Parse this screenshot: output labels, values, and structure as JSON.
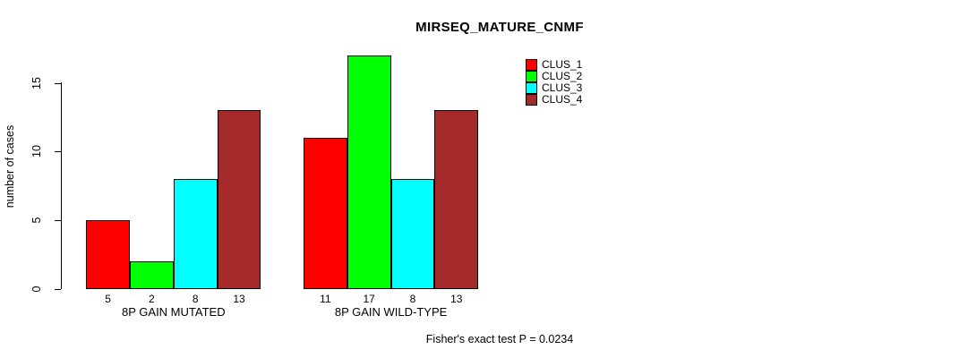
{
  "chart_data": {
    "type": "bar",
    "title": "MIRSEQ_MATURE_CNMF",
    "ylabel": "number of cases",
    "xlabel": "",
    "categories": [
      "8P GAIN MUTATED",
      "8P GAIN WILD-TYPE"
    ],
    "series": [
      {
        "name": "CLUS_1",
        "color": "#FF0000",
        "values": [
          5,
          11
        ]
      },
      {
        "name": "CLUS_2",
        "color": "#00FF00",
        "values": [
          2,
          17
        ]
      },
      {
        "name": "CLUS_3",
        "color": "#00FFFF",
        "values": [
          8,
          8
        ]
      },
      {
        "name": "CLUS_4",
        "color": "#A52A2A",
        "values": [
          13,
          13
        ]
      }
    ],
    "yticks": [
      0,
      5,
      10,
      15
    ],
    "ylim": [
      0,
      15
    ],
    "bar_value_labels_shown": true,
    "grid": false,
    "legend_position": "top-right",
    "annotation": "Fisher's exact test P = 0.0234"
  }
}
